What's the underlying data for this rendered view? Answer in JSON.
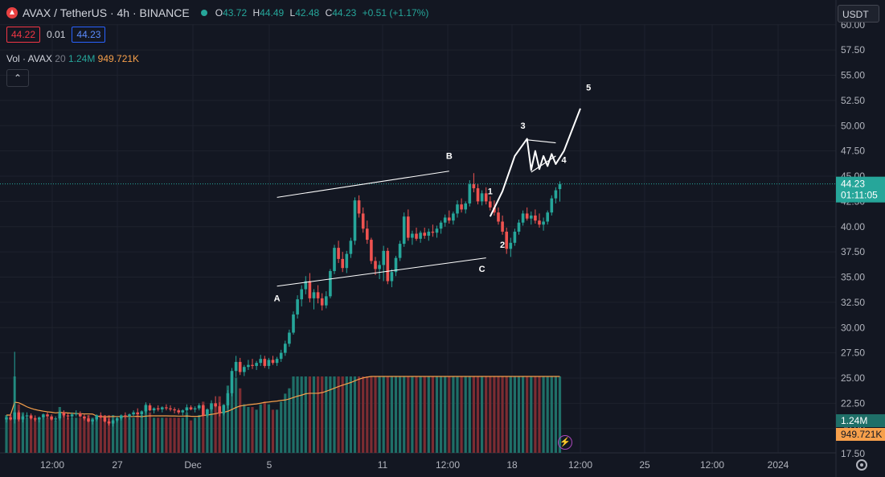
{
  "header": {
    "symbol_title": "AVAX / TetherUS · 4h · BINANCE",
    "open_label": "O",
    "open_value": "43.72",
    "high_label": "H",
    "high_value": "44.49",
    "low_label": "L",
    "low_value": "42.48",
    "close_label": "C",
    "close_value": "44.23",
    "change": "+0.51 (+1.17%)",
    "sell_price": "44.22",
    "spread": "0.01",
    "buy_price": "44.23"
  },
  "volume_legend": {
    "label": "Vol · AVAX",
    "period": "20",
    "volume": "1.24M",
    "volume_ma": "949.721K"
  },
  "toolbar": {
    "collapse_icon": "chevron-up-icon",
    "currency": "USDT"
  },
  "price_axis": {
    "ticks": [
      "17.50",
      "20.00",
      "22.50",
      "25.00",
      "27.50",
      "30.00",
      "32.50",
      "35.00",
      "37.50",
      "40.00",
      "42.50",
      "45.00",
      "47.50",
      "50.00",
      "52.50",
      "55.00",
      "57.50",
      "60.00"
    ],
    "last_price": "44.23",
    "countdown": "01:11:05",
    "volume_tag": "1.24M",
    "volume_ma_tag": "949.721K"
  },
  "time_axis": [
    "12:00",
    "27",
    "Dec",
    "5",
    "11",
    "12:00",
    "18",
    "12:00",
    "25",
    "12:00",
    "2024"
  ],
  "colors": {
    "up": "#26a69a",
    "down": "#ef5350",
    "volume_up": "#1f6f68",
    "volume_down": "#7c2c32",
    "ma": "#f7a04b",
    "drawing": "#ffffff",
    "background": "#131722"
  },
  "chart_data": {
    "type": "candlestick",
    "x_labels": [
      "12:00",
      "27",
      "Dec",
      "5",
      "11",
      "12:00",
      "18",
      "12:00",
      "25",
      "12:00",
      "2024"
    ],
    "ylim": [
      17.5,
      60.0
    ],
    "last_price": 44.23,
    "candles": [
      [
        20.9,
        21.3,
        20.6,
        21.1
      ],
      [
        21.1,
        21.5,
        20.8,
        20.9
      ],
      [
        20.9,
        27.6,
        20.5,
        21.6
      ],
      [
        21.6,
        21.8,
        20.7,
        20.9
      ],
      [
        20.9,
        21.4,
        20.6,
        21.2
      ],
      [
        21.2,
        21.6,
        21.0,
        21.3
      ],
      [
        21.3,
        21.5,
        20.9,
        21.0
      ],
      [
        21.0,
        21.3,
        20.7,
        20.9
      ],
      [
        20.9,
        21.2,
        20.6,
        21.1
      ],
      [
        21.1,
        21.5,
        20.9,
        21.4
      ],
      [
        21.4,
        21.6,
        21.0,
        21.2
      ],
      [
        21.2,
        21.4,
        20.8,
        20.9
      ],
      [
        20.9,
        21.2,
        20.7,
        21.0
      ],
      [
        21.0,
        21.8,
        20.8,
        21.6
      ],
      [
        21.6,
        21.8,
        21.1,
        21.3
      ],
      [
        21.3,
        21.5,
        20.9,
        21.2
      ],
      [
        21.2,
        21.6,
        21.0,
        21.4
      ],
      [
        21.4,
        21.8,
        21.2,
        21.5
      ],
      [
        21.5,
        21.7,
        21.1,
        21.2
      ],
      [
        21.2,
        21.4,
        20.8,
        21.0
      ],
      [
        21.0,
        21.3,
        20.6,
        20.7
      ],
      [
        20.7,
        21.0,
        20.4,
        20.9
      ],
      [
        20.9,
        21.4,
        20.7,
        21.3
      ],
      [
        21.3,
        21.6,
        21.0,
        21.1
      ],
      [
        21.1,
        21.3,
        20.6,
        20.7
      ],
      [
        20.7,
        21.0,
        20.3,
        20.5
      ],
      [
        20.5,
        20.9,
        20.2,
        20.8
      ],
      [
        20.8,
        21.2,
        20.6,
        21.0
      ],
      [
        21.0,
        21.4,
        20.8,
        21.3
      ],
      [
        21.3,
        21.6,
        21.0,
        21.2
      ],
      [
        21.2,
        21.5,
        20.9,
        21.4
      ],
      [
        21.4,
        21.8,
        21.2,
        21.6
      ],
      [
        21.6,
        22.0,
        21.3,
        21.4
      ],
      [
        21.4,
        21.8,
        21.1,
        21.7
      ],
      [
        21.7,
        22.6,
        21.5,
        22.3
      ],
      [
        22.3,
        22.5,
        21.7,
        21.8
      ],
      [
        21.8,
        22.1,
        21.5,
        22.0
      ],
      [
        22.0,
        22.3,
        21.7,
        21.9
      ],
      [
        21.9,
        22.2,
        21.6,
        22.1
      ],
      [
        22.1,
        22.4,
        21.8,
        22.0
      ],
      [
        22.0,
        22.3,
        21.7,
        21.9
      ],
      [
        21.9,
        22.1,
        21.5,
        21.8
      ],
      [
        21.8,
        22.0,
        21.4,
        21.6
      ],
      [
        21.6,
        21.9,
        21.3,
        21.8
      ],
      [
        21.8,
        22.4,
        21.6,
        22.1
      ],
      [
        22.1,
        22.3,
        21.8,
        21.9
      ],
      [
        21.9,
        22.2,
        21.6,
        22.0
      ],
      [
        22.0,
        22.5,
        21.8,
        22.3
      ],
      [
        22.3,
        22.4,
        21.2,
        21.3
      ],
      [
        21.3,
        22.0,
        21.1,
        21.9
      ],
      [
        21.9,
        22.8,
        21.7,
        22.5
      ],
      [
        22.5,
        23.2,
        22.1,
        22.2
      ],
      [
        22.2,
        22.6,
        21.2,
        21.5
      ],
      [
        21.5,
        22.4,
        21.3,
        22.3
      ],
      [
        22.3,
        23.8,
        22.0,
        23.5
      ],
      [
        23.5,
        26.0,
        23.2,
        25.7
      ],
      [
        25.7,
        27.2,
        25.1,
        26.6
      ],
      [
        26.6,
        27.0,
        25.3,
        25.6
      ],
      [
        25.6,
        26.3,
        25.2,
        26.1
      ],
      [
        26.1,
        26.8,
        25.8,
        26.3
      ],
      [
        26.3,
        26.9,
        25.9,
        26.2
      ],
      [
        26.2,
        26.7,
        25.8,
        26.5
      ],
      [
        26.5,
        27.3,
        26.2,
        26.9
      ],
      [
        26.9,
        27.2,
        26.0,
        26.2
      ],
      [
        26.2,
        27.0,
        25.9,
        26.8
      ],
      [
        26.8,
        27.2,
        26.3,
        26.5
      ],
      [
        26.5,
        27.1,
        26.2,
        26.9
      ],
      [
        26.9,
        27.8,
        26.6,
        27.5
      ],
      [
        27.5,
        28.7,
        27.2,
        28.4
      ],
      [
        28.4,
        29.8,
        28.1,
        29.5
      ],
      [
        29.5,
        31.6,
        29.3,
        31.3
      ],
      [
        31.3,
        33.2,
        30.9,
        32.8
      ],
      [
        32.8,
        34.2,
        32.1,
        33.8
      ],
      [
        33.8,
        35.1,
        33.3,
        34.6
      ],
      [
        34.6,
        35.4,
        32.5,
        32.9
      ],
      [
        32.9,
        33.8,
        31.8,
        33.5
      ],
      [
        33.5,
        34.2,
        32.4,
        32.9
      ],
      [
        32.9,
        33.4,
        31.7,
        32.2
      ],
      [
        32.2,
        33.6,
        31.9,
        33.1
      ],
      [
        33.1,
        35.8,
        32.9,
        35.6
      ],
      [
        35.6,
        38.2,
        35.3,
        37.9
      ],
      [
        37.9,
        38.6,
        36.4,
        36.8
      ],
      [
        36.8,
        37.5,
        35.5,
        35.9
      ],
      [
        35.9,
        37.6,
        35.4,
        37.3
      ],
      [
        37.3,
        38.9,
        36.9,
        38.6
      ],
      [
        38.6,
        42.9,
        38.2,
        42.6
      ],
      [
        42.6,
        43.1,
        40.9,
        41.3
      ],
      [
        41.3,
        41.9,
        39.4,
        39.8
      ],
      [
        39.8,
        40.6,
        38.3,
        38.7
      ],
      [
        38.7,
        38.9,
        36.3,
        36.6
      ],
      [
        36.6,
        37.0,
        35.2,
        35.8
      ],
      [
        35.8,
        36.6,
        34.8,
        36.2
      ],
      [
        36.2,
        38.1,
        34.6,
        37.6
      ],
      [
        37.6,
        37.9,
        34.3,
        34.6
      ],
      [
        34.6,
        35.8,
        34.0,
        35.5
      ],
      [
        35.5,
        37.1,
        35.1,
        36.9
      ],
      [
        36.9,
        38.6,
        36.6,
        38.3
      ],
      [
        38.3,
        41.4,
        38.0,
        41.0
      ],
      [
        41.0,
        41.7,
        38.6,
        38.9
      ],
      [
        38.9,
        39.6,
        38.2,
        39.3
      ],
      [
        39.3,
        39.9,
        38.6,
        38.8
      ],
      [
        38.8,
        39.6,
        38.4,
        39.4
      ],
      [
        39.4,
        39.9,
        38.8,
        39.1
      ],
      [
        39.1,
        39.8,
        38.6,
        39.5
      ],
      [
        39.5,
        40.2,
        39.0,
        39.4
      ],
      [
        39.4,
        40.1,
        38.9,
        39.8
      ],
      [
        39.8,
        40.6,
        39.3,
        40.4
      ],
      [
        40.4,
        41.2,
        40.0,
        40.9
      ],
      [
        40.9,
        41.6,
        40.3,
        40.6
      ],
      [
        40.6,
        41.5,
        40.2,
        41.3
      ],
      [
        41.3,
        42.6,
        40.9,
        42.2
      ],
      [
        42.2,
        42.8,
        41.4,
        41.7
      ],
      [
        41.7,
        42.5,
        41.3,
        42.3
      ],
      [
        42.3,
        44.6,
        42.0,
        44.2
      ],
      [
        44.2,
        45.3,
        43.4,
        43.8
      ],
      [
        43.8,
        44.2,
        42.2,
        42.5
      ],
      [
        42.5,
        43.6,
        42.1,
        43.3
      ],
      [
        43.3,
        43.9,
        42.2,
        42.5
      ],
      [
        42.5,
        43.0,
        41.6,
        41.9
      ],
      [
        41.9,
        42.6,
        41.1,
        41.4
      ],
      [
        41.4,
        41.9,
        40.2,
        40.5
      ],
      [
        40.5,
        41.1,
        39.2,
        39.5
      ],
      [
        39.5,
        39.9,
        37.3,
        37.8
      ],
      [
        37.8,
        38.9,
        37.0,
        38.4
      ],
      [
        38.4,
        39.8,
        38.1,
        39.5
      ],
      [
        39.5,
        40.7,
        39.2,
        40.4
      ],
      [
        40.4,
        41.6,
        40.1,
        41.3
      ],
      [
        41.3,
        41.9,
        40.6,
        40.8
      ],
      [
        40.8,
        41.5,
        40.2,
        41.1
      ],
      [
        41.1,
        41.7,
        40.3,
        40.6
      ],
      [
        40.6,
        41.3,
        39.9,
        40.2
      ],
      [
        40.2,
        40.9,
        39.6,
        40.5
      ],
      [
        40.5,
        41.6,
        40.2,
        41.4
      ],
      [
        41.4,
        43.1,
        41.1,
        42.8
      ],
      [
        42.8,
        43.9,
        42.3,
        43.6
      ],
      [
        43.72,
        44.49,
        42.48,
        44.23
      ]
    ],
    "volume_ma_series": "Volume MA 20",
    "volume_drawing": "varies",
    "annotations": {
      "wave_labels": [
        "A",
        "B",
        "C",
        "1",
        "2",
        "3",
        "4",
        "5"
      ],
      "channel": {
        "upper": [
          [
            66,
            42.9
          ],
          [
            108,
            45.5
          ]
        ],
        "lower": [
          [
            66,
            34.1
          ],
          [
            117,
            36.9
          ]
        ]
      },
      "projection_path": [
        [
          118,
          41.0
        ],
        [
          121,
          43.5
        ],
        [
          124,
          47.0
        ],
        [
          127,
          48.7
        ],
        [
          128,
          45.6
        ],
        [
          129,
          47.5
        ],
        [
          130,
          45.7
        ],
        [
          131,
          47.0
        ],
        [
          132,
          46.0
        ],
        [
          133,
          47.2
        ],
        [
          134,
          46.2
        ],
        [
          136,
          47.5
        ],
        [
          140,
          51.7
        ]
      ],
      "wave4_triangle": {
        "top": [
          [
            127,
            48.6
          ],
          [
            134,
            48.3
          ]
        ],
        "bottom": [
          [
            128,
            45.4
          ],
          [
            134,
            47.0
          ]
        ]
      },
      "label_positions": {
        "A": [
          66,
          32.6
        ],
        "B": [
          108,
          46.7
        ],
        "C": [
          116,
          35.5
        ],
        "1": [
          118,
          43.2
        ],
        "2": [
          121,
          37.9
        ],
        "3": [
          126,
          49.7
        ],
        "4": [
          136,
          46.3
        ],
        "5": [
          142,
          53.5
        ]
      }
    }
  }
}
